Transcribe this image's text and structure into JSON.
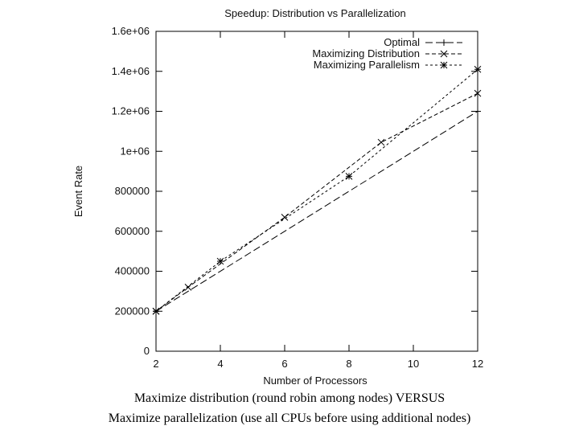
{
  "chart_data": {
    "type": "line",
    "title": "Speedup: Distribution vs Parallelization",
    "xlabel": "Number of Processors",
    "ylabel": "Event Rate",
    "xlim": [
      2,
      12
    ],
    "ylim": [
      0,
      1600000
    ],
    "x_ticks": [
      2,
      4,
      6,
      8,
      10,
      12
    ],
    "x_tick_labels": [
      "2",
      "4",
      "6",
      "8",
      "10",
      "12"
    ],
    "y_ticks": [
      0,
      200000,
      400000,
      600000,
      800000,
      1000000,
      1200000,
      1400000,
      1600000
    ],
    "y_tick_labels": [
      "0",
      "200000",
      "400000",
      "600000",
      "800000",
      "1e+06",
      "1.2e+06",
      "1.4e+06",
      "1.6e+06"
    ],
    "grid": false,
    "legend_position": "top-right",
    "series": [
      {
        "name": "Optimal",
        "marker": "+",
        "dash": "long",
        "x": [
          2,
          12
        ],
        "values": [
          200000,
          1200000
        ]
      },
      {
        "name": "Maximizing Distribution",
        "marker": "x",
        "dash": "medium",
        "x": [
          2,
          3,
          6,
          9,
          12
        ],
        "values": [
          200000,
          320000,
          670000,
          1045000,
          1290000
        ]
      },
      {
        "name": "Maximizing Parallelism",
        "marker": "*",
        "dash": "short",
        "x": [
          2,
          4,
          8,
          12
        ],
        "values": [
          200000,
          450000,
          875000,
          1410000
        ]
      }
    ]
  },
  "caption": {
    "line1": "Maximize distribution (round robin among nodes) VERSUS",
    "line2": "Maximize parallelization (use all CPUs before using additional nodes)"
  }
}
